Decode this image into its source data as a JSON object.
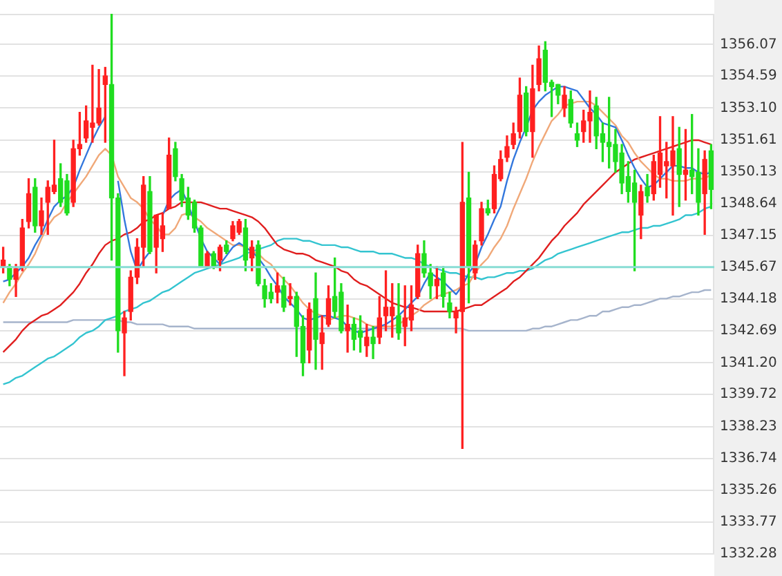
{
  "chart_data": {
    "type": "candlestick",
    "categories": [
      null,
      null,
      null,
      null,
      null,
      null,
      null,
      null,
      null,
      null,
      null,
      null,
      null,
      null,
      null,
      null,
      null,
      null,
      null,
      null,
      null,
      null,
      null,
      null,
      null,
      null,
      null,
      null,
      null,
      null,
      null,
      null,
      null,
      null,
      null,
      null,
      null,
      null,
      null,
      null,
      null,
      null,
      null,
      null,
      null,
      null,
      null,
      null,
      null,
      null,
      null,
      null,
      null,
      null,
      null,
      null,
      null,
      null,
      null,
      null,
      null,
      null,
      null,
      null,
      null,
      null,
      null,
      null,
      null,
      null,
      null,
      null,
      null,
      null,
      null,
      null,
      null,
      null,
      null,
      null,
      null,
      null,
      null,
      null,
      null,
      null,
      null,
      null,
      null,
      null,
      null,
      null,
      null,
      null,
      null,
      null,
      null,
      null,
      null,
      null,
      null,
      null,
      null,
      null,
      null,
      null,
      null,
      null,
      null,
      null,
      null,
      null
    ],
    "ohlc": [
      [
        1345.7,
        1346.6,
        1345.4,
        1346.0
      ],
      [
        1345.7,
        1345.8,
        1344.8,
        1345.1
      ],
      [
        1345.1,
        1345.8,
        1344.3,
        1345.6
      ],
      [
        1345.7,
        1347.9,
        1345.5,
        1347.5
      ],
      [
        1347.8,
        1349.8,
        1347.5,
        1349.1
      ],
      [
        1349.4,
        1349.8,
        1347.3,
        1347.6
      ],
      [
        1347.6,
        1348.9,
        1347.2,
        1348.3
      ],
      [
        1348.7,
        1349.7,
        1347.2,
        1349.4
      ],
      [
        1349.2,
        1351.6,
        1349.1,
        1349.5
      ],
      [
        1349.8,
        1350.5,
        1348.5,
        1348.7
      ],
      [
        1349.7,
        1350.0,
        1348.1,
        1348.2
      ],
      [
        1348.7,
        1351.6,
        1348.5,
        1351.2
      ],
      [
        1351.2,
        1352.9,
        1350.9,
        1351.4
      ],
      [
        1351.7,
        1353.2,
        1351.5,
        1352.5
      ],
      [
        1352.2,
        1355.1,
        1351.5,
        1352.4
      ],
      [
        1352.4,
        1354.9,
        1352.3,
        1353.1
      ],
      [
        1354.2,
        1355.0,
        1351.5,
        1354.6
      ],
      [
        1354.2,
        1357.5,
        1346.0,
        1348.9
      ],
      [
        1348.9,
        1349.1,
        1341.7,
        1342.7
      ],
      [
        1342.6,
        1343.6,
        1340.6,
        1343.3
      ],
      [
        1343.6,
        1345.5,
        1343.2,
        1345.2
      ],
      [
        1345.2,
        1347.0,
        1344.9,
        1346.6
      ],
      [
        1346.6,
        1349.9,
        1345.7,
        1349.5
      ],
      [
        1349.2,
        1349.9,
        1346.3,
        1346.4
      ],
      [
        1346.6,
        1348.1,
        1345.4,
        1348.1
      ],
      [
        1347.0,
        1348.2,
        1346.4,
        1347.6
      ],
      [
        1348.4,
        1351.7,
        1348.4,
        1350.9
      ],
      [
        1351.2,
        1351.5,
        1349.7,
        1349.9
      ],
      [
        1349.8,
        1350.0,
        1348.5,
        1348.8
      ],
      [
        1348.9,
        1349.4,
        1347.9,
        1348.1
      ],
      [
        1348.7,
        1348.8,
        1347.3,
        1347.5
      ],
      [
        1347.5,
        1347.6,
        1345.7,
        1345.7
      ],
      [
        1345.7,
        1346.4,
        1345.7,
        1346.3
      ],
      [
        1346.3,
        1346.4,
        1345.6,
        1345.7
      ],
      [
        1346.0,
        1346.7,
        1345.5,
        1346.6
      ],
      [
        1346.7,
        1346.9,
        1346.3,
        1346.4
      ],
      [
        1347.0,
        1347.8,
        1346.9,
        1347.6
      ],
      [
        1347.3,
        1347.9,
        1347.2,
        1347.8
      ],
      [
        1347.5,
        1347.9,
        1345.5,
        1346.0
      ],
      [
        1346.1,
        1346.9,
        1345.5,
        1346.6
      ],
      [
        1346.7,
        1346.9,
        1344.8,
        1344.9
      ],
      [
        1344.8,
        1345.1,
        1343.8,
        1344.2
      ],
      [
        1344.5,
        1344.9,
        1344.0,
        1344.2
      ],
      [
        1344.5,
        1345.4,
        1344.0,
        1344.8
      ],
      [
        1344.8,
        1345.2,
        1343.6,
        1343.8
      ],
      [
        1344.2,
        1344.9,
        1343.9,
        1344.3
      ],
      [
        1344.3,
        1344.5,
        1341.5,
        1342.9
      ],
      [
        1342.9,
        1343.4,
        1340.6,
        1341.2
      ],
      [
        1341.8,
        1344.0,
        1341.2,
        1343.7
      ],
      [
        1344.2,
        1345.4,
        1340.9,
        1342.3
      ],
      [
        1342.1,
        1343.4,
        1340.9,
        1342.6
      ],
      [
        1343.0,
        1344.8,
        1342.9,
        1344.2
      ],
      [
        1344.3,
        1346.1,
        1343.3,
        1343.6
      ],
      [
        1344.5,
        1344.9,
        1342.6,
        1342.7
      ],
      [
        1342.7,
        1343.9,
        1341.7,
        1343.0
      ],
      [
        1343.0,
        1343.3,
        1341.8,
        1342.3
      ],
      [
        1342.7,
        1343.4,
        1341.7,
        1342.4
      ],
      [
        1342.0,
        1343.0,
        1341.5,
        1342.4
      ],
      [
        1342.4,
        1342.9,
        1341.4,
        1342.1
      ],
      [
        1342.4,
        1344.3,
        1342.1,
        1343.3
      ],
      [
        1343.4,
        1345.5,
        1342.7,
        1343.8
      ],
      [
        1343.4,
        1344.9,
        1342.4,
        1343.8
      ],
      [
        1343.4,
        1344.9,
        1342.3,
        1342.6
      ],
      [
        1342.9,
        1344.8,
        1342.0,
        1343.3
      ],
      [
        1343.2,
        1344.8,
        1342.7,
        1343.9
      ],
      [
        1344.3,
        1346.7,
        1344.2,
        1346.3
      ],
      [
        1346.3,
        1346.9,
        1345.2,
        1345.4
      ],
      [
        1345.4,
        1345.8,
        1344.2,
        1344.8
      ],
      [
        1344.8,
        1345.7,
        1344.2,
        1345.1
      ],
      [
        1345.4,
        1345.7,
        1343.8,
        1344.3
      ],
      [
        1344.0,
        1344.5,
        1343.3,
        1343.6
      ],
      [
        1343.3,
        1343.8,
        1342.6,
        1343.6
      ],
      [
        1343.6,
        1351.5,
        1337.2,
        1348.7
      ],
      [
        1348.9,
        1350.1,
        1344.0,
        1345.7
      ],
      [
        1345.4,
        1346.9,
        1345.1,
        1346.7
      ],
      [
        1346.9,
        1348.7,
        1346.7,
        1348.4
      ],
      [
        1348.4,
        1348.8,
        1348.1,
        1348.2
      ],
      [
        1348.4,
        1350.4,
        1348.2,
        1350.0
      ],
      [
        1349.8,
        1351.1,
        1349.7,
        1350.7
      ],
      [
        1350.8,
        1351.8,
        1350.6,
        1351.3
      ],
      [
        1351.4,
        1352.4,
        1351.2,
        1351.9
      ],
      [
        1352.0,
        1354.5,
        1351.7,
        1353.7
      ],
      [
        1353.8,
        1354.1,
        1351.8,
        1352.0
      ],
      [
        1352.0,
        1355.1,
        1350.8,
        1354.0
      ],
      [
        1354.2,
        1356.0,
        1353.9,
        1355.4
      ],
      [
        1355.8,
        1356.2,
        1353.9,
        1354.3
      ],
      [
        1354.3,
        1354.4,
        1352.7,
        1354.1
      ],
      [
        1354.2,
        1354.2,
        1353.3,
        1353.7
      ],
      [
        1353.1,
        1354.1,
        1352.7,
        1353.7
      ],
      [
        1353.5,
        1353.9,
        1352.2,
        1352.4
      ],
      [
        1351.9,
        1352.4,
        1351.3,
        1351.6
      ],
      [
        1352.0,
        1353.0,
        1351.5,
        1352.5
      ],
      [
        1352.5,
        1353.9,
        1351.5,
        1352.9
      ],
      [
        1353.2,
        1353.6,
        1351.2,
        1351.8
      ],
      [
        1351.9,
        1352.4,
        1350.6,
        1351.5
      ],
      [
        1351.5,
        1353.6,
        1350.3,
        1351.3
      ],
      [
        1351.4,
        1352.1,
        1350.1,
        1350.6
      ],
      [
        1351.0,
        1351.4,
        1349.1,
        1349.6
      ],
      [
        1349.9,
        1350.6,
        1348.7,
        1349.2
      ],
      [
        1349.6,
        1350.2,
        1345.5,
        1348.7
      ],
      [
        1348.1,
        1349.5,
        1347.0,
        1349.2
      ],
      [
        1349.4,
        1350.0,
        1348.7,
        1349.0
      ],
      [
        1349.1,
        1350.9,
        1348.8,
        1350.6
      ],
      [
        1350.0,
        1352.7,
        1349.4,
        1351.0
      ],
      [
        1350.4,
        1351.5,
        1348.9,
        1350.6
      ],
      [
        1350.4,
        1352.7,
        1348.1,
        1351.1
      ],
      [
        1351.2,
        1352.2,
        1348.5,
        1350.0
      ],
      [
        1350.0,
        1352.1,
        1348.8,
        1350.2
      ],
      [
        1350.2,
        1352.8,
        1349.1,
        1349.9
      ],
      [
        1350.1,
        1351.2,
        1348.1,
        1348.7
      ],
      [
        1349.1,
        1351.1,
        1347.2,
        1350.7
      ],
      [
        1351.1,
        1351.4,
        1348.4,
        1349.3
      ]
    ],
    "colors": [
      "#ff2020",
      "#20dd20",
      "#ff2020",
      "#ff2020",
      "#ff2020",
      "#20dd20",
      "#ff2020",
      "#ff2020",
      "#ff2020",
      "#20dd20",
      "#20dd20",
      "#ff2020",
      "#ff2020",
      "#ff2020",
      "#ff2020",
      "#ff2020",
      "#ff2020",
      "#20dd20",
      "#20dd20",
      "#ff2020",
      "#ff2020",
      "#ff2020",
      "#ff2020",
      "#20dd20",
      "#ff2020",
      "#ff2020",
      "#ff2020",
      "#20dd20",
      "#20dd20",
      "#20dd20",
      "#20dd20",
      "#20dd20",
      "#ff2020",
      "#20dd20",
      "#ff2020",
      "#20dd20",
      "#ff2020",
      "#ff2020",
      "#20dd20",
      "#ff2020",
      "#20dd20",
      "#20dd20",
      "#20dd20",
      "#ff2020",
      "#20dd20",
      "#ff2020",
      "#20dd20",
      "#20dd20",
      "#ff2020",
      "#20dd20",
      "#ff2020",
      "#ff2020",
      "#20dd20",
      "#20dd20",
      "#ff2020",
      "#20dd20",
      "#20dd20",
      "#ff2020",
      "#20dd20",
      "#ff2020",
      "#ff2020",
      "#ff2020",
      "#20dd20",
      "#ff2020",
      "#ff2020",
      "#ff2020",
      "#20dd20",
      "#20dd20",
      "#ff2020",
      "#20dd20",
      "#20dd20",
      "#ff2020",
      "#ff2020",
      "#20dd20",
      "#ff2020",
      "#ff2020",
      "#20dd20",
      "#ff2020",
      "#ff2020",
      "#ff2020",
      "#ff2020",
      "#ff2020",
      "#20dd20",
      "#ff2020",
      "#ff2020",
      "#20dd20",
      "#20dd20",
      "#20dd20",
      "#ff2020",
      "#20dd20",
      "#20dd20",
      "#ff2020",
      "#ff2020",
      "#20dd20",
      "#20dd20",
      "#20dd20",
      "#20dd20",
      "#20dd20",
      "#20dd20",
      "#20dd20",
      "#ff2020",
      "#20dd20",
      "#ff2020",
      "#ff2020",
      "#ff2020",
      "#ff2020",
      "#20dd20",
      "#ff2020",
      "#20dd20",
      "#20dd20",
      "#ff2020",
      "#20dd20"
    ],
    "series": [
      {
        "type": "line",
        "color": "#3377dd",
        "values": [
          1345.0,
          1345.1,
          1345.4,
          1345.7,
          1346.1,
          1346.7,
          1347.2,
          1347.9,
          1348.5,
          1348.8,
          1349.0,
          1349.4,
          1350.2,
          1350.9,
          1351.6,
          1352.2,
          1352.7,
          null,
          1349.7,
          1347.9,
          1346.4,
          1345.5,
          1346.0,
          1346.4,
          null,
          1348.1,
          1348.8,
          1349.1,
          1349.3,
          1348.6,
          1347.8,
          1347.0,
          1346.4,
          1346.1,
          1345.8,
          1346.2,
          1346.6,
          1346.8,
          1346.6,
          1346.4,
          1346.1,
          1345.7,
          1345.2,
          1344.8,
          1344.3,
          1344.0,
          1343.7,
          1343.3,
          1343.2,
          1343.3,
          1343.4,
          1343.4,
          1343.3,
          1343.2,
          1342.9,
          1342.7,
          1342.6,
          1342.7,
          1342.8,
          1342.9,
          1343.0,
          1343.2,
          1343.4,
          1343.7,
          1344.0,
          1344.3,
          1344.9,
          1345.4,
          1345.2,
          1345.0,
          1344.7,
          1344.4,
          1344.8,
          1345.4,
          1345.8,
          1346.6,
          1347.2,
          1347.9,
          1348.5,
          1349.7,
          1350.7,
          1351.5,
          1352.2,
          1353.0,
          1353.4,
          1353.7,
          1353.9,
          1354.1,
          1354.1,
          1354.0,
          1353.9,
          1353.5,
          1353.1,
          1352.8,
          1352.4,
          1352.3,
          1352.2,
          1351.6,
          1350.9,
          1350.3,
          1349.8,
          1349.4,
          1349.5,
          1349.8,
          1350.1,
          1350.4,
          1350.4,
          1350.3,
          1350.3,
          1350.1,
          1350.0,
          1350.1
        ]
      },
      {
        "type": "line",
        "color": "#f0a878",
        "values": [
          1344.0,
          1344.5,
          1344.9,
          1345.4,
          1345.8,
          1346.3,
          1347.0,
          1347.6,
          1348.0,
          1348.2,
          1348.7,
          1349.1,
          1349.5,
          1349.9,
          1350.4,
          1350.9,
          1351.2,
          1350.9,
          1349.9,
          1349.4,
          1348.9,
          1348.7,
          1348.4,
          1347.9,
          1347.6,
          1347.2,
          1347.2,
          1347.5,
          1348.1,
          1348.2,
          1348.0,
          1347.8,
          1347.5,
          1347.3,
          1347.1,
          1346.9,
          1346.7,
          1346.7,
          1346.6,
          1346.4,
          1346.3,
          1346.0,
          1345.8,
          1345.4,
          1345.1,
          1344.8,
          1344.4,
          1344.0,
          1343.7,
          1343.5,
          1343.4,
          1343.2,
          1343.3,
          1343.4,
          1343.4,
          1343.3,
          1343.2,
          1343.0,
          1342.9,
          1342.9,
          1342.9,
          1342.9,
          1343.0,
          1343.2,
          1343.4,
          1343.6,
          1343.9,
          1344.1,
          1344.3,
          1344.4,
          1344.5,
          1344.6,
          1344.8,
          1344.9,
          1345.4,
          1345.8,
          1346.1,
          1346.6,
          1347.0,
          1347.6,
          1348.4,
          1349.1,
          1349.8,
          1350.6,
          1351.3,
          1351.9,
          1352.5,
          1352.8,
          1353.2,
          1353.3,
          1353.4,
          1353.4,
          1353.4,
          1353.2,
          1352.9,
          1352.6,
          1352.3,
          1351.8,
          1351.5,
          1351.0,
          1350.6,
          1350.3,
          1350.0,
          1349.8,
          1349.8,
          1349.7,
          1349.7,
          1349.7,
          1349.8,
          1349.8,
          1349.8,
          1350.0
        ]
      },
      {
        "type": "line",
        "color": "#e01e1e",
        "values": [
          1341.7,
          1342.0,
          1342.3,
          1342.7,
          1343.0,
          1343.2,
          1343.4,
          1343.5,
          1343.7,
          1343.9,
          1344.2,
          1344.5,
          1344.9,
          1345.4,
          1345.8,
          1346.3,
          1346.7,
          1346.9,
          1347.0,
          1347.2,
          1347.3,
          1347.5,
          1347.8,
          1347.9,
          1348.1,
          1348.2,
          1348.4,
          1348.5,
          1348.7,
          1348.7,
          1348.7,
          1348.7,
          1348.6,
          1348.5,
          1348.4,
          1348.4,
          1348.3,
          1348.2,
          1348.1,
          1348.0,
          1347.8,
          1347.5,
          1347.1,
          1346.7,
          1346.5,
          1346.4,
          1346.3,
          1346.3,
          1346.2,
          1346.0,
          1345.9,
          1345.8,
          1345.7,
          1345.5,
          1345.4,
          1345.1,
          1344.9,
          1344.8,
          1344.6,
          1344.4,
          1344.2,
          1344.0,
          1343.9,
          1343.8,
          1343.8,
          1343.7,
          1343.6,
          1343.6,
          1343.6,
          1343.6,
          1343.6,
          1343.6,
          1343.7,
          1343.8,
          1343.9,
          1343.9,
          1344.1,
          1344.3,
          1344.5,
          1344.7,
          1345.0,
          1345.2,
          1345.5,
          1345.8,
          1346.1,
          1346.5,
          1346.9,
          1347.2,
          1347.6,
          1347.9,
          1348.2,
          1348.6,
          1348.9,
          1349.2,
          1349.5,
          1349.8,
          1350.1,
          1350.3,
          1350.5,
          1350.7,
          1350.8,
          1350.9,
          1351.0,
          1351.1,
          1351.2,
          1351.3,
          1351.4,
          1351.5,
          1351.6,
          1351.6,
          1351.5,
          1351.4
        ]
      },
      {
        "type": "line",
        "color": "#33c4d0",
        "values": [
          1340.2,
          1340.3,
          1340.5,
          1340.6,
          1340.8,
          1341.0,
          1341.2,
          1341.4,
          1341.5,
          1341.7,
          1341.9,
          1342.1,
          1342.4,
          1342.6,
          1342.7,
          1342.9,
          1343.2,
          1343.3,
          1343.4,
          1343.6,
          1343.7,
          1343.8,
          1344.0,
          1344.1,
          1344.3,
          1344.5,
          1344.6,
          1344.8,
          1345.0,
          1345.2,
          1345.4,
          1345.5,
          1345.6,
          1345.7,
          1345.8,
          1345.9,
          1346.0,
          1346.1,
          1346.3,
          1346.4,
          1346.5,
          1346.6,
          1346.7,
          1346.9,
          1347.0,
          1347.0,
          1347.0,
          1346.9,
          1346.9,
          1346.8,
          1346.7,
          1346.7,
          1346.7,
          1346.6,
          1346.6,
          1346.5,
          1346.4,
          1346.4,
          1346.4,
          1346.3,
          1346.3,
          1346.3,
          1346.2,
          1346.1,
          1346.1,
          1346.0,
          1345.8,
          1345.7,
          1345.6,
          1345.5,
          1345.4,
          1345.4,
          1345.3,
          1345.2,
          1345.2,
          1345.1,
          1345.2,
          1345.2,
          1345.3,
          1345.4,
          1345.4,
          1345.5,
          1345.5,
          1345.6,
          1345.8,
          1346.0,
          1346.1,
          1346.3,
          1346.4,
          1346.5,
          1346.6,
          1346.7,
          1346.8,
          1346.9,
          1347.0,
          1347.1,
          1347.2,
          1347.3,
          1347.3,
          1347.4,
          1347.5,
          1347.5,
          1347.6,
          1347.6,
          1347.7,
          1347.8,
          1347.9,
          1348.1,
          1348.1,
          1348.2,
          1348.4,
          1348.5
        ]
      },
      {
        "type": "line",
        "color": "#a6b4cc",
        "values": [
          1343.1,
          1343.1,
          1343.1,
          1343.1,
          1343.1,
          1343.1,
          1343.1,
          1343.1,
          1343.1,
          1343.1,
          1343.1,
          1343.2,
          1343.2,
          1343.2,
          1343.2,
          1343.2,
          1343.2,
          1343.2,
          1343.2,
          1343.1,
          1343.1,
          1343.0,
          1343.0,
          1343.0,
          1343.0,
          1343.0,
          1342.9,
          1342.9,
          1342.9,
          1342.9,
          1342.8,
          1342.8,
          1342.8,
          1342.8,
          1342.8,
          1342.8,
          1342.8,
          1342.8,
          1342.8,
          1342.8,
          1342.8,
          1342.8,
          1342.8,
          1342.8,
          1342.8,
          1342.8,
          1342.8,
          1342.8,
          1342.8,
          1342.8,
          1342.8,
          1342.8,
          1342.8,
          1342.8,
          1342.8,
          1342.8,
          1342.8,
          1342.8,
          1342.8,
          1342.8,
          1342.8,
          1342.8,
          1342.8,
          1342.8,
          1342.8,
          1342.8,
          1342.8,
          1342.8,
          1342.8,
          1342.8,
          1342.8,
          1342.8,
          1342.8,
          1342.7,
          1342.7,
          1342.7,
          1342.7,
          1342.7,
          1342.7,
          1342.7,
          1342.7,
          1342.7,
          1342.7,
          1342.8,
          1342.8,
          1342.9,
          1342.9,
          1343.0,
          1343.1,
          1343.2,
          1343.2,
          1343.3,
          1343.4,
          1343.4,
          1343.6,
          1343.6,
          1343.7,
          1343.8,
          1343.8,
          1343.9,
          1343.9,
          1344.0,
          1344.1,
          1344.2,
          1344.2,
          1344.3,
          1344.3,
          1344.4,
          1344.5,
          1344.5,
          1344.6,
          1344.6
        ]
      }
    ],
    "ylim": [
      1332.28,
      1357.5
    ],
    "yticks": [
      1356.07,
      1354.59,
      {
        "value": 1353.1,
        "label": "1353.10"
      },
      1351.61,
      1350.13,
      1348.64,
      1347.15,
      1345.67,
      1344.18,
      1342.69,
      {
        "value": 1341.2,
        "label": "1341.20"
      },
      1339.72,
      1338.23,
      1336.74,
      1335.26,
      1333.77,
      1332.28
    ],
    "grid": "y",
    "tick_labels": "y",
    "legend": false,
    "marker": "none",
    "line_style": "solid",
    "ref_lines": [
      {
        "axis": "y",
        "value": 1345.67,
        "color": "#88ddd4"
      }
    ]
  }
}
